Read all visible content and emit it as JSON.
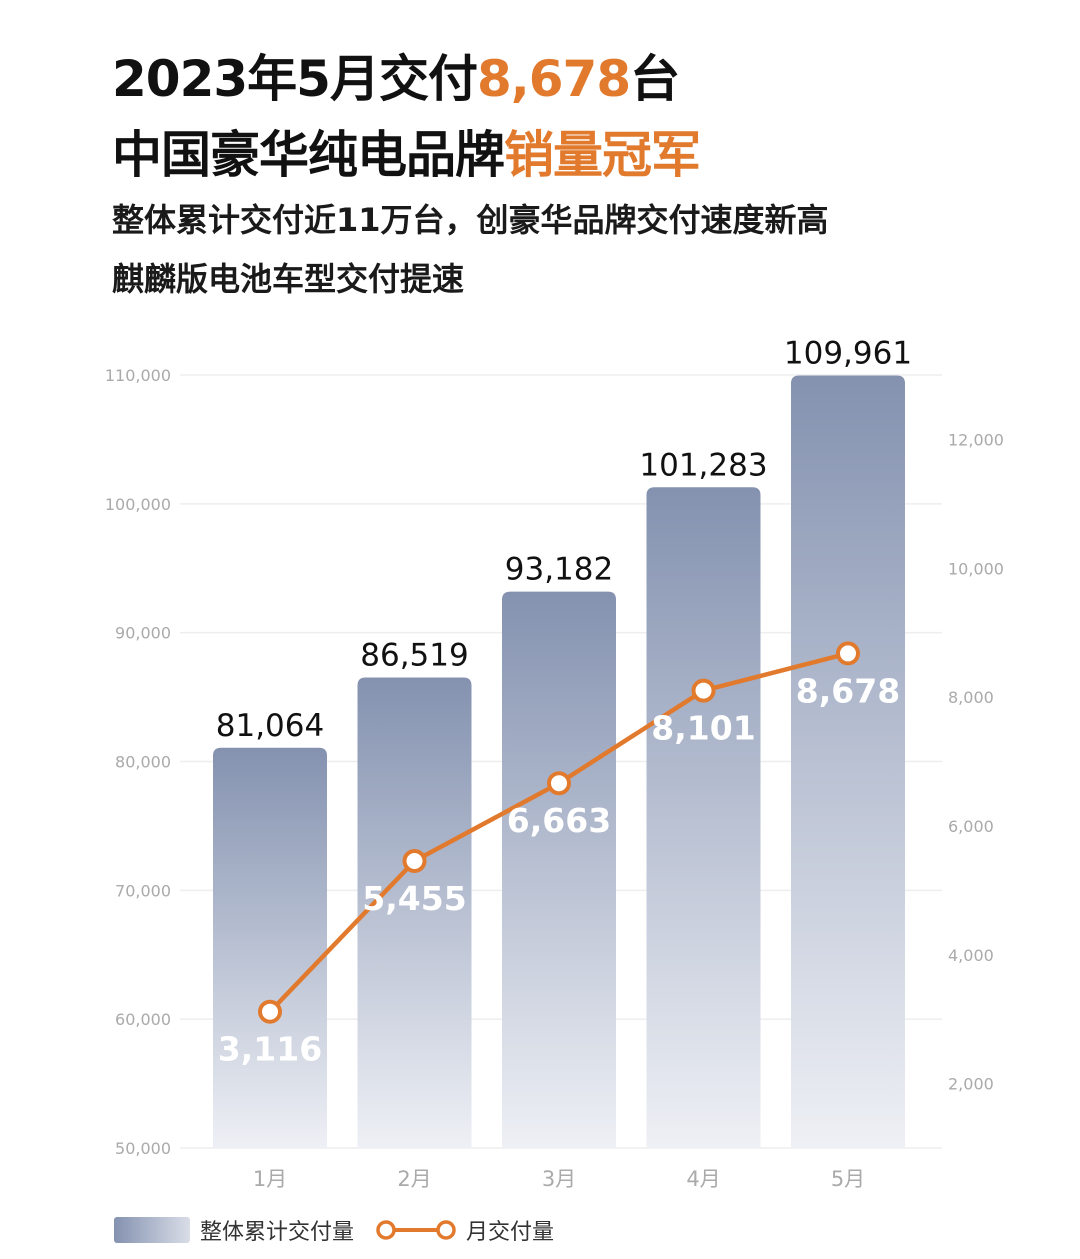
{
  "title_line1": {
    "prefix": "2023年5月交付",
    "highlight": "8,678",
    "suffix": "台"
  },
  "title_line2": {
    "prefix": "中国豪华纯电品牌",
    "highlight": "销量冠军"
  },
  "subtitle_line1": "整体累计交付近11万台，创豪华品牌交付速度新高",
  "subtitle_line2": "麒麟版电池车型交付提速",
  "colors": {
    "accent": "#e27a2e",
    "bar_top": "#8492b0",
    "bar_bottom": "#eef0f5",
    "text": "#111111",
    "axis_text": "#aaaaaa"
  },
  "chart_data": {
    "type": "bar",
    "categories": [
      "1月",
      "2月",
      "3月",
      "4月",
      "5月"
    ],
    "series": [
      {
        "name": "整体累计交付量",
        "type": "bar",
        "axis": "left",
        "values": [
          81064,
          86519,
          93182,
          101283,
          109961
        ],
        "labels": [
          "81,064",
          "86,519",
          "93,182",
          "101,283",
          "109,961"
        ]
      },
      {
        "name": "月交付量",
        "type": "line",
        "axis": "right",
        "values": [
          3116,
          5455,
          6663,
          8101,
          8678
        ],
        "labels": [
          "3,116",
          "5,455",
          "6,663",
          "8,101",
          "8,678"
        ]
      }
    ],
    "y_left": {
      "ylim": [
        50000,
        110000
      ],
      "ticks": [
        50000,
        60000,
        70000,
        80000,
        90000,
        100000,
        110000
      ],
      "tick_labels": [
        "50,000",
        "60,000",
        "70,000",
        "80,000",
        "90,000",
        "100,000",
        "110,000"
      ]
    },
    "y_right": {
      "ylim": [
        1000,
        13000
      ],
      "ticks": [
        2000,
        4000,
        6000,
        8000,
        10000,
        12000
      ],
      "tick_labels": [
        "2,000",
        "4,000",
        "6,000",
        "8,000",
        "10,000",
        "12,000"
      ]
    },
    "grid": true,
    "legend_position": "bottom-left"
  }
}
